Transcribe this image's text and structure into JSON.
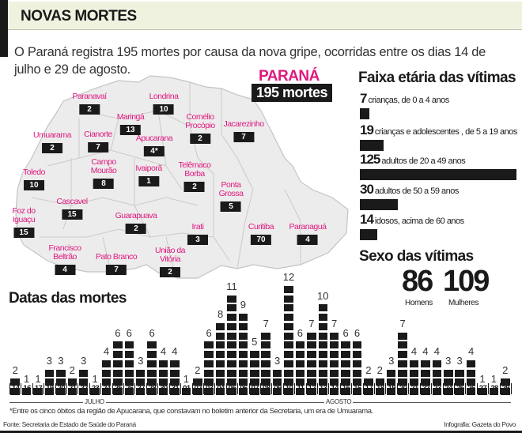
{
  "header": {
    "title": "NOVAS MORTES",
    "intro": "O Paraná registra 195 mortes por causa da nova gripe, ocorridas entre os dias 14 de julho e 29 de agosto."
  },
  "map": {
    "state_label": "PARANÁ",
    "total_label": "195 mortes",
    "regions": [
      {
        "name": "Paranavaí",
        "count": "2"
      },
      {
        "name": "Londrina",
        "count": "10"
      },
      {
        "name": "Maringá",
        "count": "13"
      },
      {
        "name": "Cornélio\nProcópio",
        "count": "2"
      },
      {
        "name": "Jacarezinho",
        "count": "7"
      },
      {
        "name": "Umuarama",
        "count": "2"
      },
      {
        "name": "Cianorte",
        "count": "7"
      },
      {
        "name": "Apucarana",
        "count": "4*"
      },
      {
        "name": "Campo\nMourão",
        "count": "8"
      },
      {
        "name": "Ivaiporã",
        "count": "1"
      },
      {
        "name": "Telêmaco\nBorba",
        "count": "2"
      },
      {
        "name": "Toledo",
        "count": "10"
      },
      {
        "name": "Ponta\nGrossa",
        "count": "5"
      },
      {
        "name": "Cascavel",
        "count": "15"
      },
      {
        "name": "Foz do\nIguaçu",
        "count": "15"
      },
      {
        "name": "Guarapuava",
        "count": "2"
      },
      {
        "name": "Irati",
        "count": "3"
      },
      {
        "name": "Curitiba",
        "count": "70"
      },
      {
        "name": "Paranaguá",
        "count": "4"
      },
      {
        "name": "Francisco\nBeltrão",
        "count": "4"
      },
      {
        "name": "Pato Branco",
        "count": "7"
      },
      {
        "name": "União da\nVitória",
        "count": "2"
      }
    ]
  },
  "age": {
    "title": "Faixa etária das vítimas",
    "groups": [
      {
        "count": "7",
        "label": "crianças, de 0 a 4 anos"
      },
      {
        "count": "19",
        "label": "crianças e adolescentes , de 5 a 19 anos"
      },
      {
        "count": "125",
        "label": "adultos de 20 a 49 anos"
      },
      {
        "count": "30",
        "label": "adultos de 50 a 59 anos"
      },
      {
        "count": "14",
        "label": "idosos, acima de 60 anos"
      }
    ]
  },
  "sex": {
    "title": "Sexo das vítimas",
    "men_count": "86",
    "men_label": "Homens",
    "women_count": "109",
    "women_label": "Mulheres"
  },
  "chart_data": [
    {
      "type": "bar",
      "title": "Datas das mortes",
      "xlabel": "JULHO / AGOSTO",
      "ylabel": "",
      "categories": [
        "14",
        "16",
        "17",
        "19",
        "20",
        "21",
        "22",
        "23",
        "24",
        "25",
        "26",
        "27",
        "28",
        "30",
        "31",
        "01",
        "02",
        "03",
        "04",
        "05",
        "06",
        "07",
        "08",
        "09",
        "10",
        "11",
        "12",
        "13",
        "14",
        "15",
        "16",
        "17",
        "18",
        "19",
        "20",
        "21",
        "22",
        "23",
        "24",
        "25",
        "26",
        "27",
        "28",
        "29"
      ],
      "months": [
        {
          "name": "JULHO",
          "from": 0,
          "to": 14
        },
        {
          "name": "AGOSTO",
          "from": 15,
          "to": 43
        }
      ],
      "values": [
        2,
        1,
        1,
        3,
        3,
        2,
        3,
        1,
        4,
        6,
        6,
        3,
        6,
        4,
        4,
        1,
        2,
        6,
        8,
        11,
        9,
        5,
        7,
        3,
        12,
        6,
        7,
        10,
        7,
        6,
        6,
        2,
        2,
        3,
        7,
        4,
        4,
        4,
        3,
        3,
        4,
        1,
        1,
        2
      ],
      "ylim": [
        0,
        12
      ]
    },
    {
      "type": "bar",
      "title": "Faixa etária das vítimas",
      "categories": [
        "0 a 4 anos",
        "5 a 19 anos",
        "20 a 49 anos",
        "50 a 59 anos",
        "acima de 60 anos"
      ],
      "values": [
        7,
        19,
        125,
        30,
        14
      ]
    },
    {
      "type": "table",
      "title": "Sexo das vítimas",
      "categories": [
        "Homens",
        "Mulheres"
      ],
      "values": [
        86,
        109
      ]
    }
  ],
  "chart": {
    "title": "Datas das mortes",
    "month_july": "JULHO",
    "month_august": "AGOSTO"
  },
  "footer": {
    "footnote": "*Entre os cinco óbitos da região de Apucarana, que constavam no boletim anterior da Secretaria, um era de Umuarama.",
    "source": "Fonte: Secretaria de Estado de Saúde do Paraná",
    "credit": "Infografia: Gazeta do Povo"
  },
  "colors": {
    "accent_pink": "#e0187f",
    "block": "#1a1a1a",
    "header_band": "#eef2df",
    "map_fill": "#ececec"
  }
}
